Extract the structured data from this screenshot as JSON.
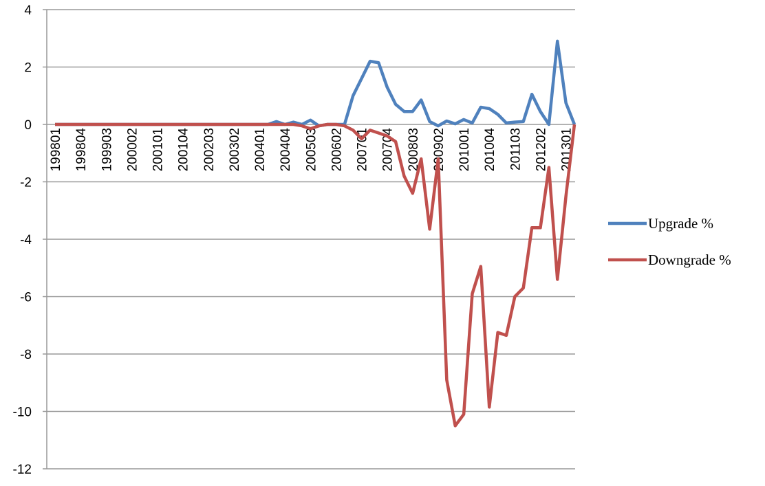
{
  "chart_data": {
    "type": "line",
    "categories": [
      "199801",
      null,
      null,
      "199804",
      null,
      null,
      "199903",
      null,
      null,
      "200002",
      null,
      null,
      "200101",
      null,
      null,
      "200104",
      null,
      null,
      "200203",
      null,
      null,
      "200302",
      null,
      null,
      "200401",
      null,
      null,
      "200404",
      null,
      null,
      "200503",
      null,
      null,
      "200602",
      null,
      null,
      "200701",
      null,
      null,
      "200704",
      null,
      null,
      "200803",
      null,
      null,
      "200902",
      null,
      null,
      "201001",
      null,
      null,
      "201004",
      null,
      null,
      "201103",
      null,
      null,
      "201202",
      null,
      null,
      "201301",
      null
    ],
    "series": [
      {
        "name": "Upgrade %",
        "color": "#4f81bd",
        "values": [
          0,
          0,
          0,
          0,
          0,
          0,
          0,
          0,
          0,
          0,
          0,
          0,
          0,
          0,
          0,
          0,
          0,
          0,
          0,
          0,
          0,
          0,
          0,
          0,
          0,
          0,
          0.1,
          0,
          0.08,
          0,
          0.15,
          -0.05,
          0,
          0,
          0,
          1.0,
          1.6,
          2.2,
          2.15,
          1.3,
          0.7,
          0.45,
          0.45,
          0.85,
          0.1,
          -0.05,
          0.12,
          0.02,
          0.17,
          0.05,
          0.6,
          0.55,
          0.35,
          0.05,
          0.08,
          0.1,
          1.05,
          0.45,
          0,
          2.9,
          0.75,
          0
        ]
      },
      {
        "name": "Downgrade %",
        "color": "#c0504d",
        "values": [
          0,
          0,
          0,
          0,
          0,
          0,
          0,
          0,
          0,
          0,
          0,
          0,
          0,
          0,
          0,
          0,
          0,
          0,
          0,
          0,
          0,
          0,
          0,
          0,
          0,
          0,
          0,
          0,
          0,
          -0.05,
          -0.15,
          -0.05,
          0,
          0,
          -0.05,
          -0.2,
          -0.5,
          -0.2,
          -0.3,
          -0.4,
          -0.6,
          -1.8,
          -2.4,
          -1.2,
          -3.65,
          -1.2,
          -8.9,
          -10.5,
          -10.1,
          -5.9,
          -4.95,
          -9.85,
          -7.25,
          -7.35,
          -6.0,
          -5.7,
          -3.6,
          -3.6,
          -1.5,
          -5.4,
          -2.5,
          0
        ]
      }
    ],
    "ylim": [
      -12,
      4
    ],
    "yticks": [
      -12,
      -10,
      -8,
      -6,
      -4,
      -2,
      0,
      2,
      4
    ],
    "grid": true,
    "legend": "right"
  }
}
